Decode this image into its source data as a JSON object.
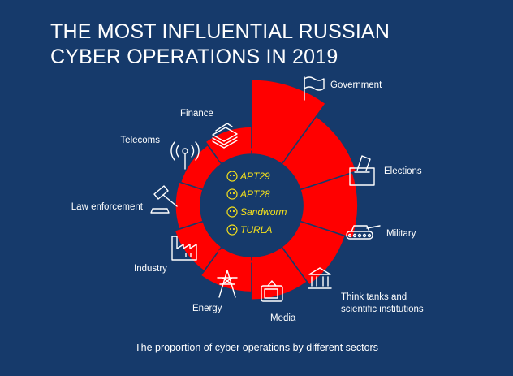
{
  "title_line1": "THE MOST INFLUENTIAL RUSSIAN",
  "title_line2": "CYBER OPERATIONS IN 2019",
  "caption": "The proportion of cyber operations by different sectors",
  "colors": {
    "background": "#163a6b",
    "accent": "#ff0000",
    "group_text": "#f7e21b",
    "text": "#ffffff"
  },
  "chart_data": {
    "type": "pie",
    "center_label": [
      "APT29",
      "APT28",
      "Sandworm",
      "TURLA"
    ],
    "categories": [
      "Government",
      "Elections",
      "Military",
      "Think tanks and scientific institutions",
      "Media",
      "Energy",
      "Industry",
      "Law enforcement",
      "Telecoms",
      "Finance"
    ],
    "values": [
      0.95,
      0.75,
      0.7,
      0.6,
      0.55,
      0.45,
      0.38,
      0.32,
      0.3,
      0.35
    ],
    "value_unit": "relative share, read from wedge radius",
    "icons": [
      "flag-icon",
      "ballot-box-icon",
      "tank-icon",
      "building-columns-icon",
      "tv-icon",
      "power-pylon-icon",
      "factory-icon",
      "gavel-icon",
      "antenna-icon",
      "money-stack-icon"
    ]
  }
}
